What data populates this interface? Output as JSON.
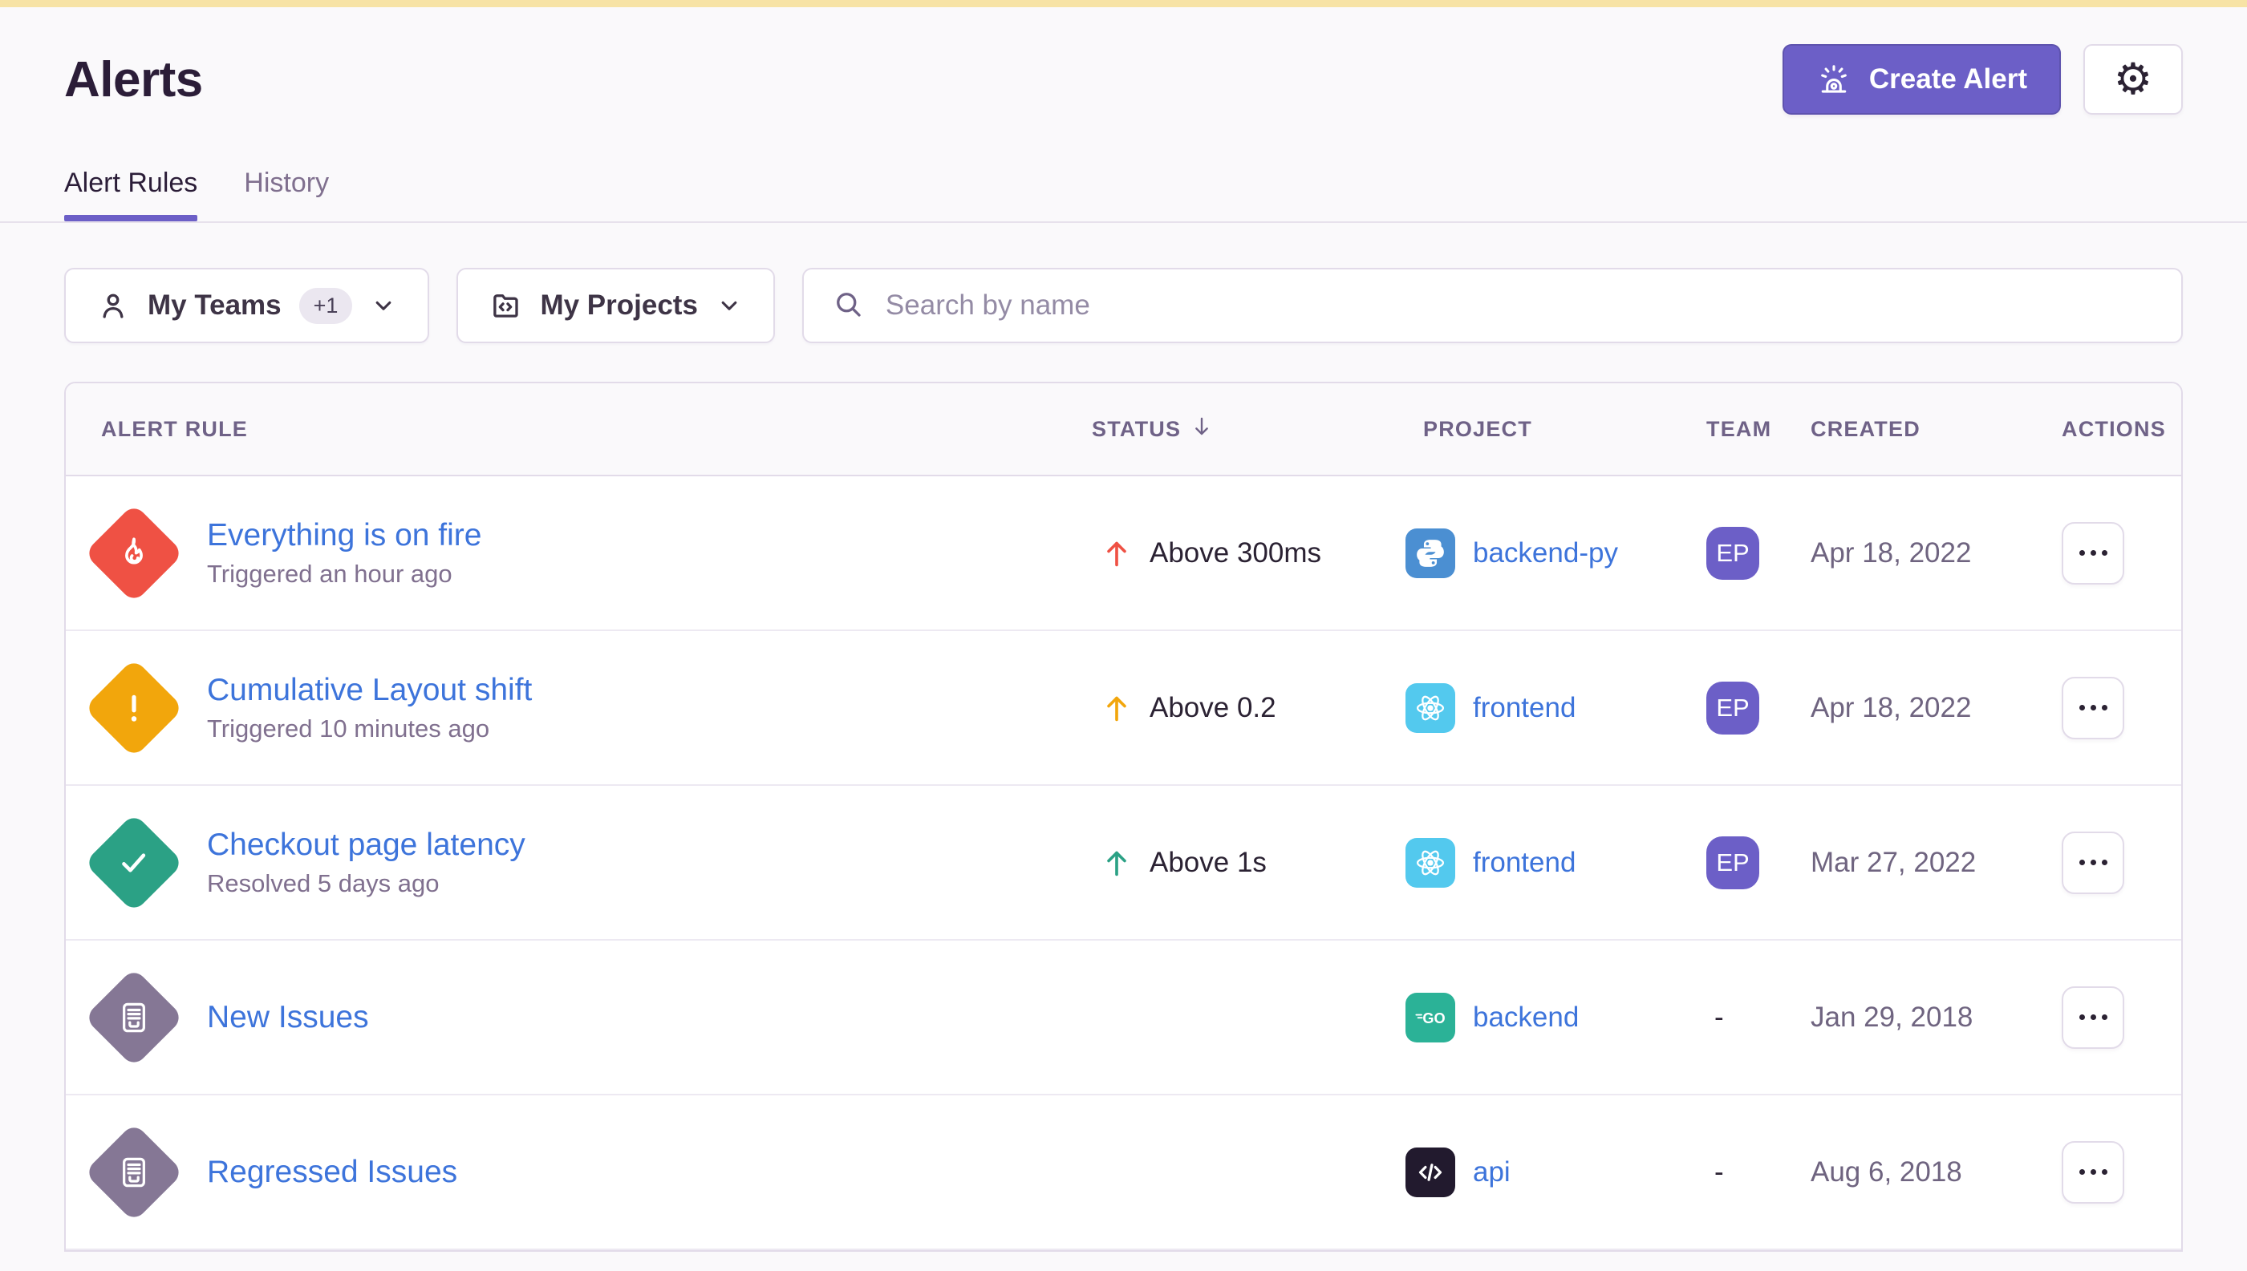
{
  "banner_color": "#F7E3A5",
  "accent_color": "#6C5FC7",
  "link_color": "#3D74DB",
  "header": {
    "title": "Alerts",
    "create_alert_label": "Create Alert"
  },
  "tabs": [
    {
      "label": "Alert Rules",
      "active": true
    },
    {
      "label": "History",
      "active": false
    }
  ],
  "filters": {
    "teams": {
      "label": "My Teams",
      "badge": "+1"
    },
    "projects": {
      "label": "My Projects"
    },
    "search": {
      "placeholder": "Search by name"
    }
  },
  "table": {
    "columns": [
      "Alert Rule",
      "Status",
      "Project",
      "Team",
      "Created",
      "Actions"
    ],
    "sorted_column": "Status",
    "sort_direction": "descending",
    "rows": [
      {
        "icon": "fire",
        "icon_color": "#EF5144",
        "name": "Everything is on fire",
        "detail": "Triggered an hour ago",
        "status": {
          "direction": "up",
          "color": "#EF5144",
          "text": "Above 300ms"
        },
        "project": {
          "platform": "python",
          "icon_bg": "#4B8FD2",
          "name": "backend-py"
        },
        "team": "EP",
        "created": "Apr 18, 2022"
      },
      {
        "icon": "exclamation",
        "icon_color": "#F2A60C",
        "name": "Cumulative Layout shift",
        "detail": "Triggered 10 minutes ago",
        "status": {
          "direction": "up",
          "color": "#F2A60C",
          "text": "Above 0.2"
        },
        "project": {
          "platform": "react",
          "icon_bg": "#53C9EE",
          "name": "frontend"
        },
        "team": "EP",
        "created": "Apr 18, 2022"
      },
      {
        "icon": "check",
        "icon_color": "#2BA185",
        "name": "Checkout page latency",
        "detail": "Resolved 5 days ago",
        "status": {
          "direction": "up",
          "color": "#2BA185",
          "text": "Above 1s"
        },
        "project": {
          "platform": "react",
          "icon_bg": "#53C9EE",
          "name": "frontend"
        },
        "team": "EP",
        "created": "Mar 27, 2022"
      },
      {
        "icon": "issues",
        "icon_color": "#857795",
        "name": "New Issues",
        "detail": "",
        "status": null,
        "project": {
          "platform": "go",
          "icon_bg": "#2BB297",
          "name": "backend"
        },
        "team": "-",
        "created": "Jan 29, 2018"
      },
      {
        "icon": "issues",
        "icon_color": "#857795",
        "name": "Regressed Issues",
        "detail": "",
        "status": null,
        "project": {
          "platform": "code",
          "icon_bg": "#221A2E",
          "name": "api"
        },
        "team": "-",
        "created": "Aug 6, 2018"
      }
    ]
  }
}
